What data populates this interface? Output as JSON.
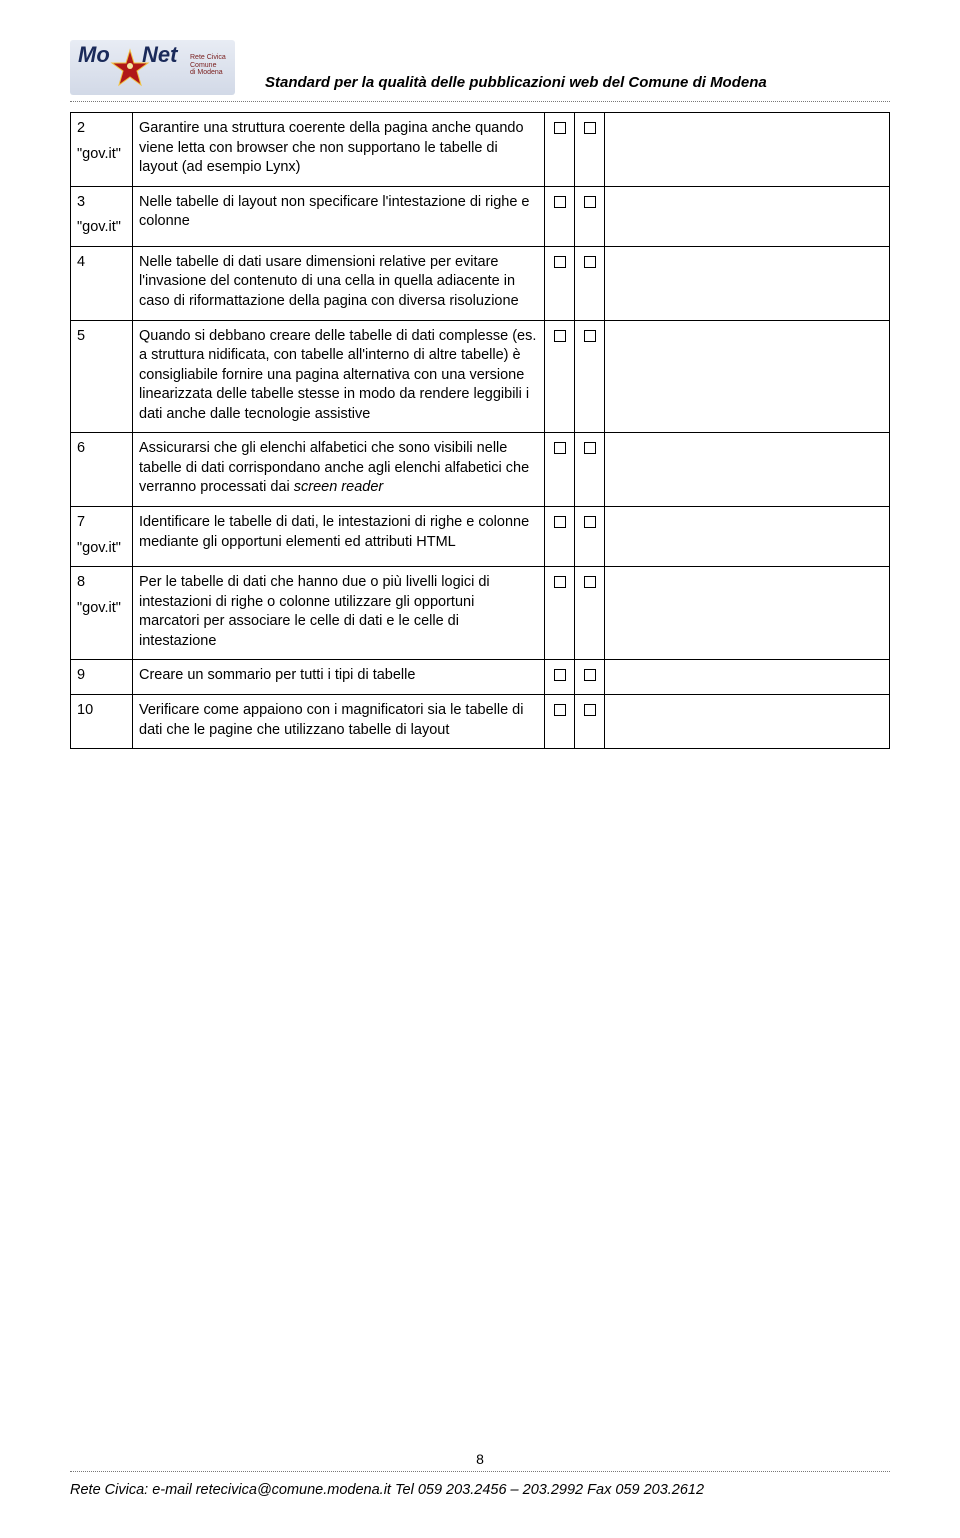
{
  "header": {
    "logo": {
      "prefix": "Mo",
      "suffix": "Net",
      "subtitle_line1": "Rete Civica",
      "subtitle_line2": "Comune",
      "subtitle_line3": "di Modena"
    },
    "doc_title": "Standard per la qualità delle pubblicazioni web del Comune di Modena"
  },
  "rows": [
    {
      "num": "2",
      "govit": "\"gov.it\"",
      "desc": "Garantire una struttura coerente della pagina anche quando viene letta con browser che non supportano le tabelle di layout (ad esempio Lynx)"
    },
    {
      "num": "3",
      "govit": "\"gov.it\"",
      "desc": "Nelle tabelle di layout non specificare l'intestazione di righe e colonne"
    },
    {
      "num": "4",
      "govit": "",
      "desc": "Nelle tabelle di dati usare dimensioni relative per evitare l'invasione del contenuto di una cella in quella adiacente in caso di riformattazione della pagina con diversa risoluzione"
    },
    {
      "num": "5",
      "govit": "",
      "desc": "Quando si debbano creare delle tabelle di dati complesse (es. a struttura nidificata, con tabelle all'interno di altre tabelle) è consigliabile fornire una pagina alternativa con una versione linearizzata delle tabelle stesse in modo da rendere leggibili i dati anche dalle tecnologie assistive"
    },
    {
      "num": "6",
      "govit": "",
      "desc_html": "Assicurarsi che gli elenchi alfabetici che sono visibili nelle tabelle di dati corrispondano anche agli elenchi alfabetici che verranno processati dai <span class=\"italic\">screen reader</span>"
    },
    {
      "num": "7",
      "govit": "\"gov.it\"",
      "desc": "Identificare le tabelle di dati, le intestazioni di righe e colonne mediante gli opportuni elementi ed attributi HTML"
    },
    {
      "num": "8",
      "govit": "\"gov.it\"",
      "desc": "Per le tabelle di dati che hanno due o più livelli logici di intestazioni di righe o colonne utilizzare gli opportuni marcatori per associare le celle di dati e le celle di intestazione"
    },
    {
      "num": "9",
      "govit": "",
      "desc": "Creare un sommario per tutti i tipi di tabelle"
    },
    {
      "num": "10",
      "govit": "",
      "desc": "Verificare come appaiono con i magnificatori sia le tabelle di dati che le pagine che utilizzano tabelle di layout"
    }
  ],
  "footer": {
    "page_number": "8",
    "line": "Rete Civica:   e-mail retecivica@comune.modena.it   Tel 059 203.2456 – 203.2992   Fax 059 203.2612"
  },
  "colors": {
    "text": "#000000",
    "border": "#000000",
    "dotted": "#777777",
    "logo_bg_top": "#e8ecf4",
    "logo_bg_bottom": "#d2d9e7",
    "logo_text": "#1a2a5a",
    "logo_sub": "#7a2020",
    "star_fill": "#b01818",
    "star_outline": "#f0c040"
  }
}
